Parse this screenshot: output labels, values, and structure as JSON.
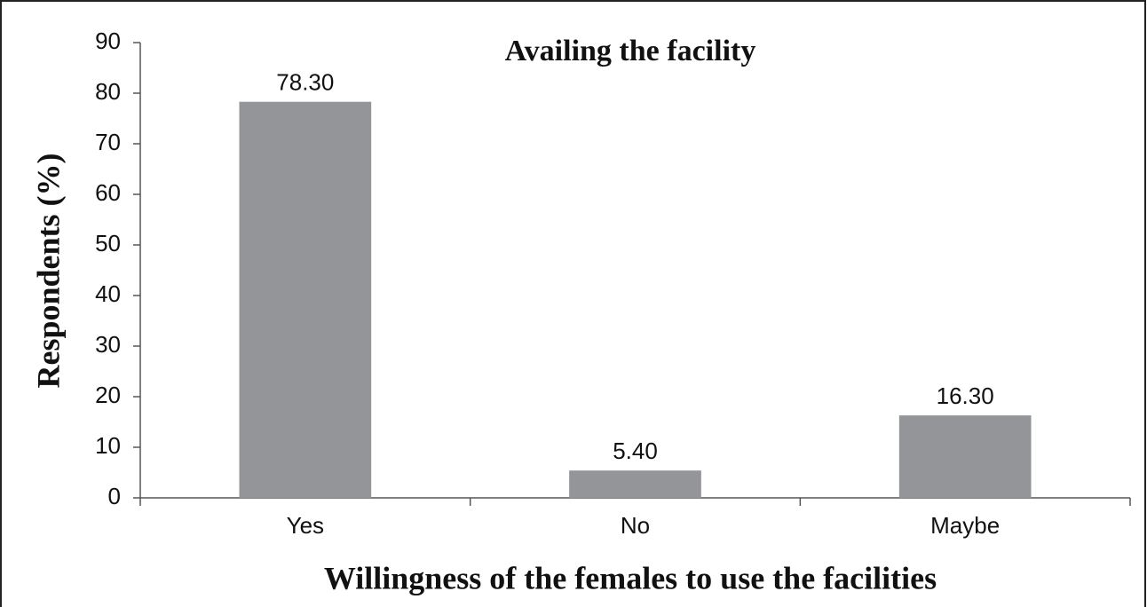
{
  "chart_data": {
    "type": "bar",
    "title": "Availing the facility",
    "x_label": "Willingness of the females to use the facilities",
    "y_label": "Respondents (%)",
    "categories": [
      "Yes",
      "No",
      "Maybe"
    ],
    "values": [
      78.3,
      5.4,
      16.3
    ],
    "value_labels": [
      "78.30",
      "5.40",
      "16.30"
    ],
    "color": "#939598",
    "ylim": [
      0,
      90
    ],
    "yticks": [
      0,
      10,
      20,
      30,
      40,
      50,
      60,
      70,
      80,
      90
    ],
    "grid": false
  }
}
